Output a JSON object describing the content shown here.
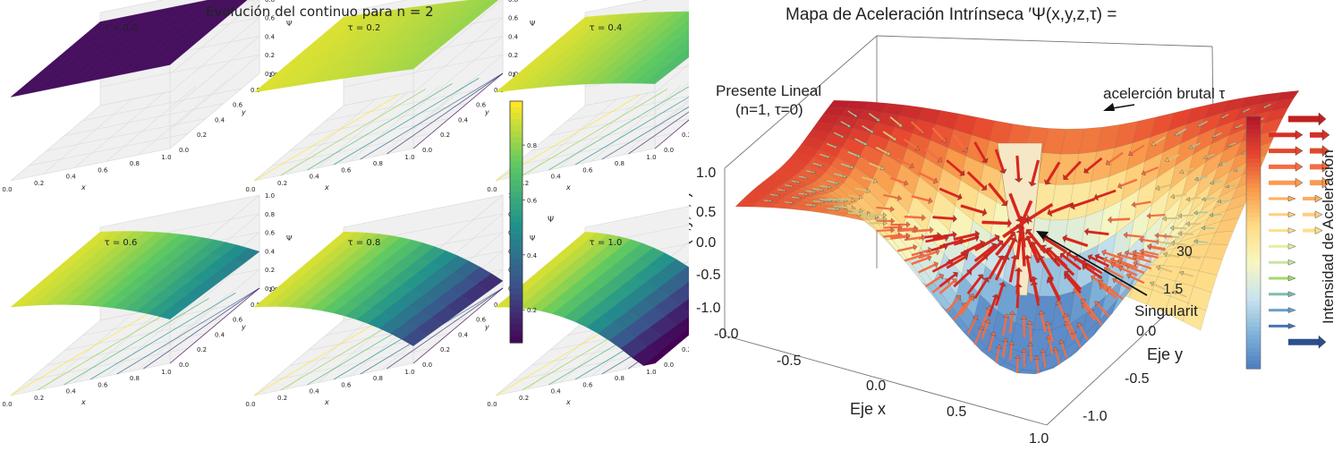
{
  "left_figure": {
    "suptitle": "Evolución del continuo para n = 2",
    "tick_labels_01": [
      "0.0",
      "0.2",
      "0.4",
      "0.6",
      "0.8",
      "1.0"
    ],
    "z_ticks": [
      "0.0",
      "0.2",
      "0.4",
      "0.6",
      "0.8",
      "1.0"
    ],
    "x_axis_label": "x",
    "y_axis_label": "y",
    "z_axis_label": "Ψ",
    "colorbar_ticks": [
      "0.2",
      "0.4",
      "0.6",
      "0.8"
    ],
    "colorbar_label": "Ψ",
    "colormap": [
      "#440154",
      "#3b528b",
      "#21918c",
      "#5ec962",
      "#fde725"
    ],
    "panels": [
      {
        "title": "τ = 0.0",
        "tau": 0.0
      },
      {
        "title": "τ = 0.2",
        "tau": 0.2
      },
      {
        "title": "τ = 0.4",
        "tau": 0.4
      },
      {
        "title": "τ = 0.6",
        "tau": 0.6
      },
      {
        "title": "τ = 0.8",
        "tau": 0.8
      },
      {
        "title": "τ = 1.0",
        "tau": 1.0
      }
    ]
  },
  "right_figure": {
    "title": "Mapa de Aceleración Intrínseca ′Ψ(x,y,z,τ) =",
    "annotation_present": [
      "Presente Lineal",
      "(n=1, τ=0)"
    ],
    "annotation_accel": "acelerción brutal τ",
    "annotation_singular": "Singularit",
    "z_axis_label": "Valor Ψ(x,y,z,τ)",
    "z_ticks": [
      "1.0",
      "0.5",
      "0.0",
      "-0.5",
      "-1.0"
    ],
    "x_axis_label": "Eje x",
    "x_ticks": [
      "-0.0",
      "-0.5",
      "0.0",
      "0.5",
      "1.0"
    ],
    "y_axis_label": "Eje y",
    "y_ticks": [
      "30",
      "1.5",
      "0.0",
      "-0.5",
      "-1.0"
    ],
    "legend_label": "Intensidad de Aceleración",
    "legend_colors": [
      "#c0211f",
      "#d73027",
      "#e04a2b",
      "#f46d43",
      "#fb9a50",
      "#fdae61",
      "#fdcf80",
      "#fee08b",
      "#e6f0a0",
      "#c8e6a0",
      "#a6d96a",
      "#7fbcb0",
      "#6a9fc9",
      "#4575b4",
      "#2c4f8c"
    ],
    "colorbar_colors": [
      "#b2182b",
      "#e6452e",
      "#f89b4a",
      "#fedc87",
      "#f7f7c0",
      "#c8e3ee",
      "#7fb2d8",
      "#4a78bf"
    ]
  },
  "chart_data": [
    {
      "type": "surface3d",
      "title": "Evolución del continuo para n = 2",
      "xlabel": "x",
      "ylabel": "y",
      "zlabel": "Ψ",
      "xlim": [
        0,
        1
      ],
      "ylim": [
        0,
        1
      ],
      "zlim": [
        0,
        1
      ],
      "panels": [
        "τ = 0.0",
        "τ = 0.2",
        "τ = 0.4",
        "τ = 0.6",
        "τ = 0.8",
        "τ = 1.0"
      ],
      "approx_corner_values": [
        {
          "tau": 0.0,
          "psi_x0": 0.9,
          "psi_x1": 0.9
        },
        {
          "tau": 0.2,
          "psi_x0": 0.95,
          "psi_x1": 0.8
        },
        {
          "tau": 0.4,
          "psi_x0": 0.95,
          "psi_x1": 0.45
        },
        {
          "tau": 0.6,
          "psi_x0": 0.95,
          "psi_x1": 0.05
        },
        {
          "tau": 0.8,
          "psi_x0": 0.95,
          "psi_x1": 0.0
        },
        {
          "tau": 1.0,
          "psi_x0": 0.95,
          "psi_x1": 0.0
        }
      ],
      "colorbar": {
        "ticks": [
          0.2,
          0.4,
          0.6,
          0.8
        ],
        "label": "Ψ"
      }
    },
    {
      "type": "surface3d_quiver",
      "title": "Mapa de Aceleración Intrínseca ′Ψ(x,y,z,τ) =",
      "xlabel": "Eje x",
      "ylabel": "Eje y",
      "zlabel": "Valor Ψ(x,y,z,τ)",
      "xlim": [
        -1.0,
        1.0
      ],
      "zlim": [
        -1.0,
        1.0
      ],
      "annotations": [
        "Presente Lineal (n=1, τ=0)",
        "acelerción brutal τ",
        "Singularit"
      ],
      "legend": "Intensidad de Aceleración"
    }
  ]
}
